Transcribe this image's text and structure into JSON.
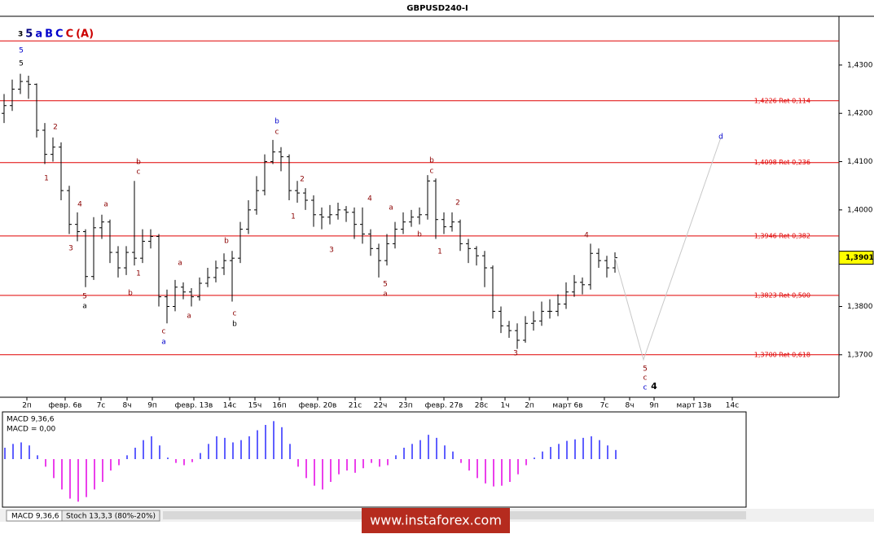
{
  "chart_data": {
    "type": "ohlc",
    "title": "GBPUSD240-I",
    "color": "#000000",
    "open": [
      1.42,
      1.4216,
      1.425,
      1.4266,
      1.426,
      1.4165,
      1.4115,
      1.413,
      1.404,
      1.397,
      1.3955,
      1.3862,
      1.3963,
      1.3975,
      1.3912,
      1.388,
      1.3912,
      1.39,
      1.3935,
      1.3945,
      1.382,
      1.38,
      1.384,
      1.383,
      1.382,
      1.3848,
      1.386,
      1.388,
      1.3895,
      1.39,
      1.396,
      1.4,
      1.404,
      1.41,
      1.412,
      1.411,
      1.404,
      1.4035,
      1.402,
      1.399,
      1.3985,
      1.399,
      1.4,
      1.3995,
      1.397,
      1.395,
      1.392,
      1.3895,
      1.393,
      1.396,
      1.3975,
      1.3985,
      1.399,
      1.406,
      1.398,
      1.3965,
      1.3975,
      1.393,
      1.392,
      1.3905,
      1.388,
      1.379,
      1.376,
      1.375,
      1.373,
      1.3765,
      1.377,
      1.379,
      1.379,
      1.3805,
      1.383,
      1.385,
      1.3845,
      1.391,
      1.3895,
      1.388
    ],
    "high": [
      1.424,
      1.427,
      1.4282,
      1.4278,
      1.4262,
      1.418,
      1.415,
      1.414,
      1.405,
      1.3995,
      1.396,
      1.3985,
      1.399,
      1.398,
      1.3925,
      1.3925,
      1.406,
      1.396,
      1.396,
      1.395,
      1.3835,
      1.3855,
      1.385,
      1.3838,
      1.386,
      1.388,
      1.3895,
      1.391,
      1.3915,
      1.3975,
      1.402,
      1.407,
      1.4115,
      1.4145,
      1.413,
      1.4115,
      1.406,
      1.4045,
      1.403,
      1.4005,
      1.401,
      1.4015,
      1.4008,
      1.4005,
      1.4005,
      1.396,
      1.393,
      1.395,
      1.3975,
      1.3995,
      1.4,
      1.4005,
      1.4072,
      1.4065,
      1.3995,
      1.3995,
      1.398,
      1.394,
      1.3925,
      1.3915,
      1.3885,
      1.38,
      1.377,
      1.3765,
      1.378,
      1.379,
      1.381,
      1.3815,
      1.3825,
      1.385,
      1.3865,
      1.386,
      1.393,
      1.392,
      1.3905,
      1.3912
    ],
    "low": [
      1.418,
      1.4205,
      1.424,
      1.423,
      1.415,
      1.4095,
      1.41,
      1.402,
      1.395,
      1.3935,
      1.384,
      1.3855,
      1.394,
      1.389,
      1.386,
      1.3865,
      1.3885,
      1.389,
      1.392,
      1.38,
      1.3765,
      1.379,
      1.3815,
      1.38,
      1.3812,
      1.384,
      1.385,
      1.3865,
      1.381,
      1.389,
      1.395,
      1.399,
      1.403,
      1.4095,
      1.408,
      1.402,
      1.4015,
      1.4,
      1.3965,
      1.396,
      1.397,
      1.398,
      1.3975,
      1.394,
      1.393,
      1.3905,
      1.386,
      1.3885,
      1.392,
      1.395,
      1.3965,
      1.397,
      1.398,
      1.394,
      1.395,
      1.3955,
      1.3915,
      1.389,
      1.3885,
      1.384,
      1.3775,
      1.3745,
      1.3735,
      1.3712,
      1.3725,
      1.375,
      1.376,
      1.3775,
      1.378,
      1.3795,
      1.382,
      1.3825,
      1.3835,
      1.388,
      1.386,
      1.387
    ],
    "close": [
      1.4216,
      1.425,
      1.4266,
      1.426,
      1.4165,
      1.4115,
      1.413,
      1.404,
      1.397,
      1.3955,
      1.3862,
      1.3963,
      1.3975,
      1.3912,
      1.388,
      1.3912,
      1.39,
      1.3935,
      1.3945,
      1.382,
      1.38,
      1.384,
      1.383,
      1.382,
      1.3848,
      1.386,
      1.388,
      1.3895,
      1.39,
      1.396,
      1.4,
      1.404,
      1.41,
      1.412,
      1.411,
      1.404,
      1.4035,
      1.402,
      1.399,
      1.3985,
      1.399,
      1.4,
      1.3995,
      1.397,
      1.395,
      1.392,
      1.3895,
      1.393,
      1.396,
      1.3975,
      1.3985,
      1.399,
      1.406,
      1.398,
      1.3965,
      1.3975,
      1.393,
      1.392,
      1.3905,
      1.388,
      1.379,
      1.376,
      1.375,
      1.373,
      1.3765,
      1.377,
      1.379,
      1.379,
      1.3805,
      1.383,
      1.385,
      1.3845,
      1.391,
      1.3895,
      1.388,
      1.3901
    ],
    "xlim": [
      -0.5,
      102.5
    ],
    "xticks": [
      {
        "value": 2.8,
        "label": "2п"
      },
      {
        "value": 7.5,
        "label": "февр. 6в"
      },
      {
        "value": 11.9,
        "label": "7с"
      },
      {
        "value": 15.1,
        "label": "8ч"
      },
      {
        "value": 18.2,
        "label": "9п"
      },
      {
        "value": 23.3,
        "label": "февр. 13в"
      },
      {
        "value": 27.7,
        "label": "14с"
      },
      {
        "value": 30.8,
        "label": "15ч"
      },
      {
        "value": 33.8,
        "label": "16п"
      },
      {
        "value": 38.5,
        "label": "февр. 20в"
      },
      {
        "value": 43.1,
        "label": "21с"
      },
      {
        "value": 46.2,
        "label": "22ч"
      },
      {
        "value": 49.3,
        "label": "23п"
      },
      {
        "value": 54,
        "label": "февр. 27в"
      },
      {
        "value": 58.6,
        "label": "28с"
      },
      {
        "value": 61.5,
        "label": "1ч"
      },
      {
        "value": 64.5,
        "label": "2п"
      },
      {
        "value": 69.2,
        "label": "март 6в"
      },
      {
        "value": 73.7,
        "label": "7с"
      },
      {
        "value": 76.8,
        "label": "8ч"
      },
      {
        "value": 79.8,
        "label": "9п"
      },
      {
        "value": 84.7,
        "label": "март 13в"
      },
      {
        "value": 89.4,
        "label": "14с"
      }
    ],
    "ylim": [
      1.3612,
      1.4401
    ],
    "yticks": [
      {
        "value": 1.43,
        "label": "1,4300"
      },
      {
        "value": 1.42,
        "label": "1,4200"
      },
      {
        "value": 1.41,
        "label": "1,4100"
      },
      {
        "value": 1.4,
        "label": "1,4000"
      },
      {
        "value": 1.39,
        "label": "1,3900"
      },
      {
        "value": 1.38,
        "label": "1,3800"
      },
      {
        "value": 1.37,
        "label": "1,3700"
      }
    ],
    "levels_color": "#e00000",
    "levels": [
      1.435,
      {
        "value": 1.4226,
        "label": "1,4226 Ret 0,114"
      },
      {
        "value": 1.4098,
        "label": "1,4098 Ret 0,236"
      },
      {
        "value": 1.3946,
        "label": "1,3946 Ret 0,382"
      },
      {
        "value": 1.3823,
        "label": "1,3823 Ret 0,500"
      },
      {
        "value": 1.37,
        "label": "1,3700 Ret 0,618"
      }
    ],
    "last_price": {
      "value": 1.3901,
      "label": "1,3901",
      "color": "#ffff00"
    },
    "forecast": {
      "x": [
        75,
        78.5,
        88
      ],
      "values": [
        1.3901,
        1.369,
        1.415
      ],
      "color": "#c8c8c8"
    },
    "wave_legend": [
      {
        "text": "3",
        "color": "#000000"
      },
      {
        "text": "5",
        "color": "#000080"
      },
      {
        "text": "a",
        "color": "#0000cc"
      },
      {
        "text": "B",
        "color": "#0000cc"
      },
      {
        "text": "C",
        "color": "#0000cc"
      },
      {
        "text": "C",
        "color": "#cc0000"
      },
      {
        "text": "(A)",
        "color": "#cc0000"
      }
    ],
    "wave_labels": [
      {
        "text": "5",
        "color": "#0000cc"
      },
      {
        "text": "5",
        "color": "#000000"
      },
      {
        "text": "2",
        "color": "#8b0000"
      },
      {
        "text": "1",
        "color": "#8b0000"
      },
      {
        "text": "4",
        "color": "#8b0000"
      },
      {
        "text": "a",
        "color": "#8b0000"
      },
      {
        "text": "3",
        "color": "#8b0000"
      },
      {
        "text": "5",
        "color": "#8b0000"
      },
      {
        "text": "a",
        "color": "#000000"
      },
      {
        "text": "b",
        "color": "#8b0000"
      },
      {
        "text": "c",
        "color": "#8b0000"
      },
      {
        "text": "1",
        "color": "#8b0000"
      },
      {
        "text": "b",
        "color": "#8b0000"
      },
      {
        "text": "a",
        "color": "#8b0000"
      },
      {
        "text": "a",
        "color": "#8b0000"
      },
      {
        "text": "c",
        "color": "#8b0000"
      },
      {
        "text": "a",
        "color": "#0000cc"
      },
      {
        "text": "b",
        "color": "#8b0000"
      },
      {
        "text": "c",
        "color": "#8b0000"
      },
      {
        "text": "b",
        "color": "#000000"
      },
      {
        "text": "b",
        "color": "#0000cc"
      },
      {
        "text": "c",
        "color": "#8b0000"
      },
      {
        "text": "2",
        "color": "#8b0000"
      },
      {
        "text": "1",
        "color": "#8b0000"
      },
      {
        "text": "3",
        "color": "#8b0000"
      },
      {
        "text": "4",
        "color": "#8b0000"
      },
      {
        "text": "a",
        "color": "#8b0000"
      },
      {
        "text": "5",
        "color": "#8b0000"
      },
      {
        "text": "a",
        "color": "#8b0000"
      },
      {
        "text": "b",
        "color": "#8b0000"
      },
      {
        "text": "b",
        "color": "#8b0000"
      },
      {
        "text": "c",
        "color": "#8b0000"
      },
      {
        "text": "2",
        "color": "#8b0000"
      },
      {
        "text": "1",
        "color": "#8b0000"
      },
      {
        "text": "3",
        "color": "#8b0000"
      },
      {
        "text": "4",
        "color": "#8b0000"
      },
      {
        "text": "5",
        "color": "#8b0000"
      },
      {
        "text": "c",
        "color": "#8b0000"
      },
      {
        "text": "c",
        "color": "#0000cc"
      },
      {
        "text": "4",
        "color": "#000000"
      },
      {
        "text": "d",
        "color": "#0000cc"
      }
    ],
    "macd": {
      "title": "MACD 9,36,6",
      "value_text": "MACD = 0,00",
      "ylim": [
        -0.006,
        0.006
      ],
      "positive_color": "#2a2aff",
      "negative_color": "#e400e4",
      "values": [
        0.0015,
        0.002,
        0.0022,
        0.0018,
        0.0005,
        -0.001,
        -0.0025,
        -0.004,
        -0.0052,
        -0.0056,
        -0.005,
        -0.004,
        -0.003,
        -0.0015,
        -0.0008,
        0.0005,
        0.0015,
        0.0025,
        0.003,
        0.0018,
        0.0002,
        -0.0005,
        -0.0008,
        -0.0004,
        0.0008,
        0.002,
        0.003,
        0.0028,
        0.0022,
        0.0025,
        0.003,
        0.0038,
        0.0045,
        0.005,
        0.0042,
        0.002,
        -0.001,
        -0.0025,
        -0.0035,
        -0.004,
        -0.003,
        -0.002,
        -0.0015,
        -0.0018,
        -0.0012,
        -0.0005,
        -0.001,
        -0.0008,
        0.0005,
        0.0015,
        0.002,
        0.0025,
        0.0032,
        0.0028,
        0.0018,
        0.001,
        -0.0005,
        -0.0015,
        -0.0025,
        -0.0032,
        -0.0036,
        -0.0035,
        -0.003,
        -0.002,
        -0.0008,
        0.0002,
        0.001,
        0.0016,
        0.002,
        0.0024,
        0.0026,
        0.0028,
        0.003,
        0.0025,
        0.0018,
        0.0012
      ]
    }
  },
  "tabs": [
    "MACD 9,36,6",
    "Stoch 13,3,3 (80%-20%)"
  ],
  "watermark": "www.instaforex.com"
}
